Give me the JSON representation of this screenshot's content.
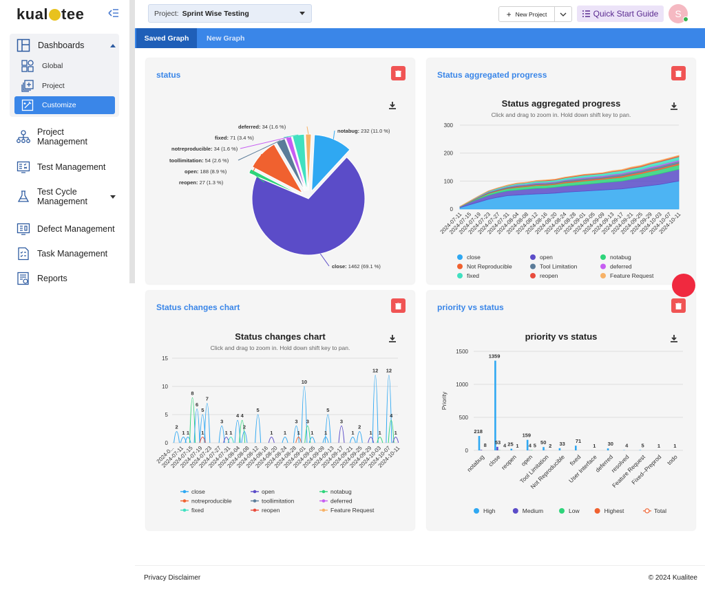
{
  "app": {
    "logo_text_left": "kual",
    "logo_text_right": "tee"
  },
  "sidebar": {
    "dashboards": {
      "label": "Dashboards",
      "sub": [
        {
          "label": "Global"
        },
        {
          "label": "Project"
        },
        {
          "label": "Customize"
        }
      ]
    },
    "items": [
      {
        "label_line1": "Project",
        "label_line2": "Management"
      },
      {
        "label": "Test Management"
      },
      {
        "label_line1": "Test Cycle",
        "label_line2": "Management"
      },
      {
        "label": "Defect Management"
      },
      {
        "label": "Task Management"
      },
      {
        "label": "Reports"
      }
    ]
  },
  "topbar": {
    "project_label": "Project:",
    "project_value": "Sprint Wise Testing",
    "new_project": "New Project",
    "quick_start": "Quick Start Guide",
    "avatar_letter": "S"
  },
  "tabs": [
    {
      "label": "Saved Graph"
    },
    {
      "label": "New Graph"
    }
  ],
  "cards": {
    "status": {
      "title": "status"
    },
    "aggregated": {
      "title": "Status aggregated progress",
      "chart_title": "Status aggregated progress",
      "subtitle": "Click and drag to zoom in. Hold down shift key to pan."
    },
    "changes": {
      "title": "Status changes chart",
      "chart_title": "Status changes chart",
      "subtitle": "Click and drag to zoom in. Hold down shift key to pan."
    },
    "priority": {
      "title": "priority vs status",
      "chart_title": "priority vs status"
    }
  },
  "footer": {
    "left": "Privacy Disclaimer",
    "right": "© 2024 Kualitee"
  },
  "colors": {
    "accent": "#3a86e8",
    "danger": "#f05454"
  },
  "chart_data": [
    {
      "type": "pie",
      "title": "",
      "slices": [
        {
          "name": "notabug",
          "label": "notabug: 232 (11.0 %)",
          "value": 232,
          "color": "#2fa8f2"
        },
        {
          "name": "close",
          "label": "close: 1462 (69.1 %)",
          "value": 1462,
          "color": "#5b4cc8"
        },
        {
          "name": "reopen",
          "label": "reopen: 27 (1.3 %)",
          "value": 27,
          "color": "#2ed47a"
        },
        {
          "name": "open",
          "label": "open: 188 (8.9 %)",
          "value": 188,
          "color": "#f0612f"
        },
        {
          "name": "toollimitation",
          "label": "toollimitation: 54 (2.6 %)",
          "value": 54,
          "color": "#5b7c99"
        },
        {
          "name": "notreproducible",
          "label": "notreproducible: 34 (1.6 %)",
          "value": 34,
          "color": "#c65df2"
        },
        {
          "name": "fixed",
          "label": "fixed: 71 (3.4 %)",
          "value": 71,
          "color": "#40e0c0"
        },
        {
          "name": "deferred",
          "label": "deferred: 34 (1.6 %)",
          "value": 34,
          "color": "#f7b267"
        }
      ]
    },
    {
      "type": "area",
      "title": "Status aggregated progress",
      "subtitle": "Click and drag to zoom in. Hold down shift key to pan.",
      "ylim": [
        0,
        300
      ],
      "yticks": [
        0,
        100,
        200,
        300
      ],
      "x": [
        "2024-07-11",
        "2024-07-15",
        "2024-07-19",
        "2024-07-23",
        "2024-07-27",
        "2024-07-31",
        "2024-08-04",
        "2024-08-08",
        "2024-08-12",
        "2024-08-16",
        "2024-08-20",
        "2024-08-24",
        "2024-08-28",
        "2024-09-01",
        "2024-09-05",
        "2024-09-09",
        "2024-09-13",
        "2024-09-17",
        "2024-09-21",
        "2024-09-25",
        "2024-09-29",
        "2024-10-03",
        "2024-10-07",
        "2024-10-11"
      ],
      "series": [
        {
          "name": "close",
          "color": "#2fa8f2",
          "values": [
            5,
            15,
            25,
            35,
            42,
            48,
            50,
            52,
            54,
            55,
            57,
            60,
            62,
            64,
            66,
            68,
            70,
            72,
            76,
            80,
            84,
            88,
            94,
            100
          ]
        },
        {
          "name": "open",
          "color": "#5b4cc8",
          "values": [
            3,
            8,
            12,
            14,
            16,
            17,
            18,
            19,
            20,
            20,
            21,
            22,
            23,
            24,
            25,
            26,
            27,
            28,
            30,
            32,
            35,
            38,
            40,
            42
          ]
        },
        {
          "name": "notabug",
          "color": "#2ed47a",
          "values": [
            1,
            2,
            4,
            6,
            7,
            8,
            9,
            9,
            10,
            10,
            10,
            11,
            11,
            12,
            12,
            12,
            13,
            13,
            14,
            14,
            15,
            15,
            16,
            16
          ]
        },
        {
          "name": "Not Reproducible",
          "color": "#f0612f",
          "values": [
            0,
            1,
            1,
            2,
            2,
            2,
            3,
            3,
            3,
            3,
            3,
            4,
            4,
            4,
            4,
            4,
            4,
            5,
            5,
            5,
            5,
            5,
            5,
            5
          ]
        },
        {
          "name": "Tool Limitation",
          "color": "#5b7c99",
          "values": [
            0,
            1,
            2,
            3,
            3,
            4,
            4,
            4,
            5,
            5,
            5,
            5,
            6,
            6,
            6,
            6,
            7,
            7,
            7,
            7,
            8,
            8,
            8,
            8
          ]
        },
        {
          "name": "deferred",
          "color": "#c65df2",
          "values": [
            0,
            0,
            1,
            1,
            1,
            1,
            2,
            2,
            2,
            2,
            2,
            2,
            3,
            3,
            3,
            3,
            3,
            3,
            3,
            3,
            4,
            4,
            4,
            4
          ]
        },
        {
          "name": "fixed",
          "color": "#40e0c0",
          "values": [
            0,
            1,
            2,
            3,
            4,
            4,
            5,
            5,
            6,
            6,
            6,
            7,
            7,
            8,
            8,
            8,
            9,
            9,
            10,
            10,
            10,
            11,
            11,
            12
          ]
        },
        {
          "name": "reopen",
          "color": "#e84c3d",
          "values": [
            0,
            0,
            0,
            1,
            1,
            1,
            1,
            1,
            1,
            2,
            2,
            2,
            2,
            2,
            2,
            2,
            2,
            2,
            3,
            3,
            3,
            3,
            3,
            3
          ]
        },
        {
          "name": "Feature Request",
          "color": "#f7b267",
          "values": [
            0,
            0,
            0,
            0,
            0,
            1,
            1,
            1,
            1,
            1,
            1,
            1,
            1,
            1,
            1,
            1,
            2,
            2,
            2,
            2,
            2,
            2,
            2,
            2
          ]
        }
      ]
    },
    {
      "type": "line",
      "title": "Status changes chart",
      "subtitle": "Click and drag to zoom in. Hold down shift key to pan.",
      "ylim": [
        0,
        15
      ],
      "yticks": [
        0,
        5,
        10,
        15
      ],
      "x": [
        "2024-0...",
        "2024-07-11",
        "2024-07-15",
        "2024-07-19",
        "2024-07-23",
        "2024-07-27",
        "2024-07-31",
        "2024-08-04",
        "2024-08-08",
        "2024-08-12",
        "2024-08-16",
        "2024-08-20",
        "2024-08-24",
        "2024-08-28",
        "2024-09-01",
        "2024-09-05",
        "2024-09-09",
        "2024-09-13",
        "2024-09-17",
        "2024-09-21",
        "2024-09-25",
        "2024-09-29",
        "2024-10-03",
        "2024-10-07",
        "2024-10-11"
      ],
      "peaks": [
        {
          "x": 0.02,
          "v": 2,
          "color": "#2fa8f2"
        },
        {
          "x": 0.05,
          "v": 1,
          "color": "#2fa8f2"
        },
        {
          "x": 0.07,
          "v": 1,
          "color": "#2fa8f2"
        },
        {
          "x": 0.09,
          "v": 8,
          "color": "#2ed47a"
        },
        {
          "x": 0.11,
          "v": 6,
          "color": "#2fa8f2"
        },
        {
          "x": 0.135,
          "v": 5,
          "color": "#2fa8f2"
        },
        {
          "x": 0.155,
          "v": 7,
          "color": "#2fa8f2"
        },
        {
          "x": 0.135,
          "v": 1,
          "color": "#e84c3d"
        },
        {
          "x": 0.22,
          "v": 3,
          "color": "#2fa8f2"
        },
        {
          "x": 0.24,
          "v": 1,
          "color": "#5b4cc8"
        },
        {
          "x": 0.26,
          "v": 1,
          "color": "#40e0c0"
        },
        {
          "x": 0.29,
          "v": 4,
          "color": "#2fa8f2"
        },
        {
          "x": 0.31,
          "v": 4,
          "color": "#2ed47a"
        },
        {
          "x": 0.32,
          "v": 2,
          "color": "#2fa8f2"
        },
        {
          "x": 0.38,
          "v": 5,
          "color": "#2fa8f2"
        },
        {
          "x": 0.44,
          "v": 1,
          "color": "#5b4cc8"
        },
        {
          "x": 0.5,
          "v": 1,
          "color": "#2fa8f2"
        },
        {
          "x": 0.55,
          "v": 3,
          "color": "#2fa8f2"
        },
        {
          "x": 0.56,
          "v": 1,
          "color": "#f0612f"
        },
        {
          "x": 0.585,
          "v": 10,
          "color": "#2fa8f2"
        },
        {
          "x": 0.6,
          "v": 3,
          "color": "#2ed47a"
        },
        {
          "x": 0.62,
          "v": 1,
          "color": "#2fa8f2"
        },
        {
          "x": 0.69,
          "v": 5,
          "color": "#2fa8f2"
        },
        {
          "x": 0.68,
          "v": 1,
          "color": "#2fa8f2"
        },
        {
          "x": 0.75,
          "v": 3,
          "color": "#5b4cc8"
        },
        {
          "x": 0.8,
          "v": 1,
          "color": "#2fa8f2"
        },
        {
          "x": 0.83,
          "v": 2,
          "color": "#2fa8f2"
        },
        {
          "x": 0.9,
          "v": 12,
          "color": "#2fa8f2"
        },
        {
          "x": 0.88,
          "v": 1,
          "color": "#5b4cc8"
        },
        {
          "x": 0.92,
          "v": 1,
          "color": "#2ed47a"
        },
        {
          "x": 0.96,
          "v": 12,
          "color": "#2fa8f2"
        },
        {
          "x": 0.97,
          "v": 4,
          "color": "#2ed47a"
        },
        {
          "x": 0.99,
          "v": 1,
          "color": "#5b4cc8"
        }
      ],
      "legend": [
        {
          "name": "close",
          "color": "#2fa8f2"
        },
        {
          "name": "open",
          "color": "#5b4cc8"
        },
        {
          "name": "notabug",
          "color": "#2ed47a"
        },
        {
          "name": "notreproducible",
          "color": "#f0612f"
        },
        {
          "name": "toollimitation",
          "color": "#5b7c99"
        },
        {
          "name": "deferred",
          "color": "#c65df2"
        },
        {
          "name": "fixed",
          "color": "#40e0c0"
        },
        {
          "name": "reopen",
          "color": "#e84c3d"
        },
        {
          "name": "Feature Request",
          "color": "#f7b267"
        }
      ]
    },
    {
      "type": "bar",
      "title": "priority vs status",
      "ylabel": "Priority",
      "ylim": [
        0,
        1500
      ],
      "yticks": [
        0,
        500,
        1000,
        1500
      ],
      "categories": [
        "notabug",
        "close",
        "reopen",
        "open",
        "Tool Limitation",
        "Not Reproducible",
        "fixed",
        "User Interface",
        "deferred",
        "resolved",
        "Feature Request",
        "Fixed--Preprod",
        "todo"
      ],
      "series": [
        {
          "name": "High",
          "color": "#2fa8f2",
          "values": [
            218,
            1359,
            25,
            159,
            50,
            33,
            71,
            1,
            30,
            4,
            5,
            1,
            1
          ]
        },
        {
          "name": "Medium",
          "color": "#5b4cc8",
          "values": [
            8,
            53,
            1,
            4,
            2,
            0,
            0,
            0,
            0,
            0,
            0,
            0,
            0
          ]
        },
        {
          "name": "Low",
          "color": "#2ed47a",
          "values": [
            0,
            4,
            0,
            5,
            0,
            0,
            0,
            0,
            0,
            0,
            0,
            0,
            0
          ]
        },
        {
          "name": "Highest",
          "color": "#f0612f",
          "values": [
            0,
            0,
            0,
            0,
            0,
            0,
            0,
            0,
            0,
            0,
            0,
            0,
            0
          ]
        },
        {
          "name": "Total",
          "color": "#f0612f",
          "values": [
            0,
            0,
            0,
            0,
            0,
            0,
            0,
            0,
            0,
            0,
            0,
            0,
            0
          ]
        }
      ],
      "labels": [
        {
          "cat": 0,
          "offset": -5,
          "text": "218"
        },
        {
          "cat": 0,
          "offset": 5,
          "text": "8"
        },
        {
          "cat": 1,
          "offset": -5,
          "text": "1359"
        },
        {
          "cat": 1,
          "offset": 0,
          "text": "53"
        },
        {
          "cat": 1,
          "offset": 10,
          "text": "4"
        },
        {
          "cat": 2,
          "offset": -5,
          "text": "25"
        },
        {
          "cat": 2,
          "offset": 5,
          "text": "1"
        },
        {
          "cat": 3,
          "offset": -5,
          "text": "159"
        },
        {
          "cat": 3,
          "offset": 0,
          "text": "4"
        },
        {
          "cat": 3,
          "offset": 7,
          "text": "5"
        },
        {
          "cat": 4,
          "offset": -4,
          "text": "50"
        },
        {
          "cat": 4,
          "offset": 6,
          "text": "2"
        },
        {
          "cat": 5,
          "offset": 0,
          "text": "33"
        },
        {
          "cat": 6,
          "offset": 0,
          "text": "71"
        },
        {
          "cat": 7,
          "offset": 0,
          "text": "1"
        },
        {
          "cat": 8,
          "offset": 0,
          "text": "30"
        },
        {
          "cat": 9,
          "offset": 0,
          "text": "4"
        },
        {
          "cat": 10,
          "offset": 0,
          "text": "5"
        },
        {
          "cat": 11,
          "offset": 0,
          "text": "1"
        },
        {
          "cat": 12,
          "offset": 0,
          "text": "1"
        }
      ]
    }
  ]
}
